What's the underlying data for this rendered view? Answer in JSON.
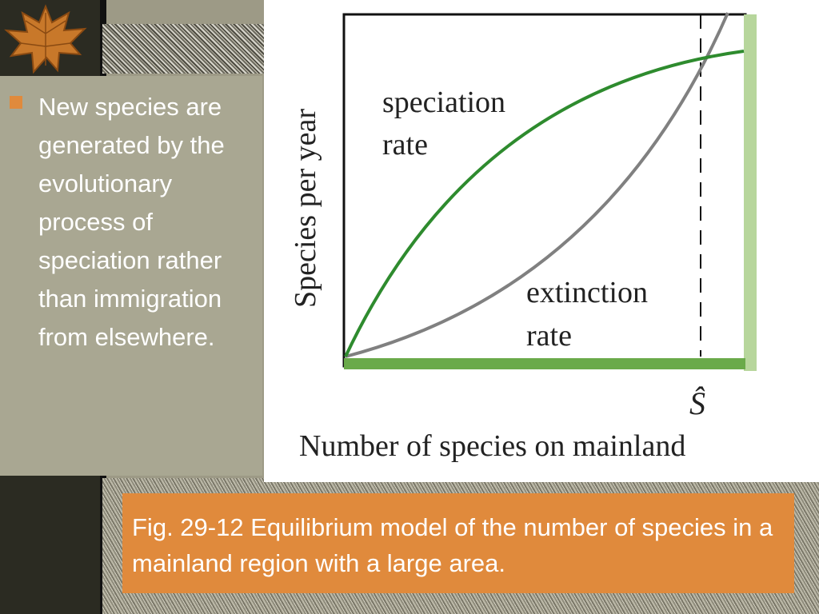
{
  "bullet": {
    "text": "New species are generated by the evolutionary process of speciation rather than immigration from elsewhere."
  },
  "figure": {
    "ylabel": "Species per year",
    "xlabel": "Number of species on mainland",
    "speciation_label_1": "speciation",
    "speciation_label_2": "rate",
    "extinction_label_1": "extinction",
    "extinction_label_2": "rate",
    "equilibrium_label": "Ŝ"
  },
  "caption": {
    "text": "Fig. 29-12 Equilibrium model of the number of species in a mainland region with a large area."
  },
  "colors": {
    "accent": "#e08a3c",
    "speciation": "#2e8b2e",
    "extinction": "#808080",
    "baseline": "#6aaa4a",
    "right_bar": "#b7d69c"
  },
  "icons": {
    "logo": "autumn-leaf",
    "bullet": "square-bullet"
  }
}
